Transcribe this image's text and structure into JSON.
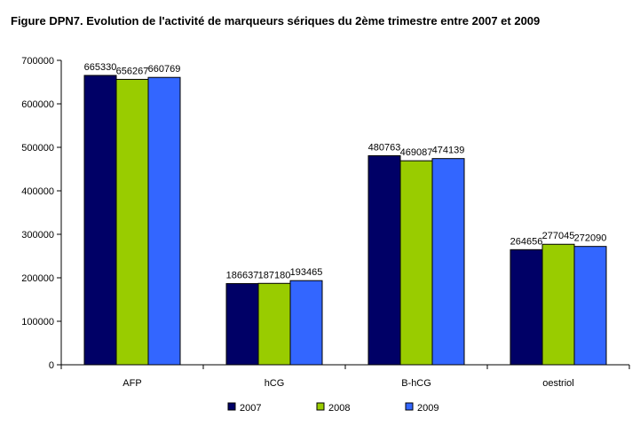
{
  "chart_data": {
    "type": "bar",
    "title": "Figure DPN7. Evolution de l'activité de marqueurs sériques du 2ème trimestre entre 2007 et 2009",
    "categories": [
      "AFP",
      "hCG",
      "B-hCG",
      "oestriol"
    ],
    "series": [
      {
        "name": "2007",
        "color": "#000066",
        "values": [
          665330,
          186637,
          480763,
          264656
        ]
      },
      {
        "name": "2008",
        "color": "#99CC00",
        "values": [
          656267,
          187180,
          469087,
          277045
        ]
      },
      {
        "name": "2009",
        "color": "#3366FF",
        "values": [
          660769,
          193465,
          474139,
          272090
        ]
      }
    ],
    "ylim": [
      0,
      700000
    ],
    "yticks": [
      0,
      100000,
      200000,
      300000,
      400000,
      500000,
      600000,
      700000
    ],
    "ytick_labels": [
      "0",
      "100000",
      "200000",
      "300000",
      "400000",
      "500000",
      "600000",
      "700000"
    ],
    "xlabel": "",
    "ylabel": "",
    "grid": false,
    "legend_position": "bottom"
  }
}
